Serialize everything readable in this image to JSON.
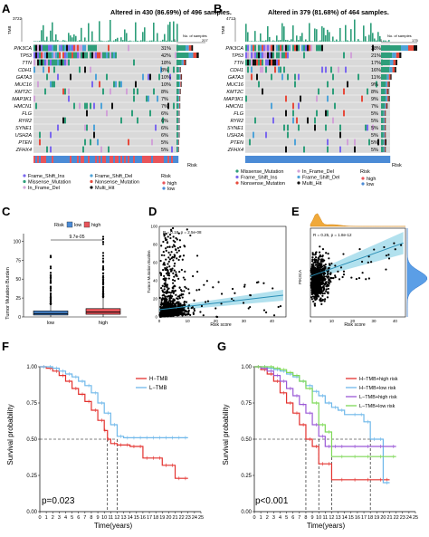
{
  "panels": {
    "A": {
      "letter": "A",
      "title": "Altered in 430 (86.69%) of 496 samples.",
      "tmb_max": "3722",
      "tmb_axis": "TMB",
      "samples_axis": "No. of samples",
      "samples_ticks": [
        "0",
        "207"
      ],
      "genes": [
        "PIK3CA",
        "TP53",
        "TTN",
        "CDH1",
        "GATA3",
        "MUC16",
        "KMT2C",
        "MAP3K1",
        "HMCN1",
        "FLG",
        "RYR2",
        "SYNE1",
        "USH2A",
        "PTEN",
        "ZFHX4"
      ],
      "pcts": [
        "31%",
        "42%",
        "18%",
        "8%",
        "10%",
        "10%",
        "8%",
        "7%",
        "7%",
        "6%",
        "6%",
        "6%",
        "6%",
        "5%",
        "5%"
      ],
      "counts": [
        0.57,
        0.77,
        0.33,
        0.15,
        0.19,
        0.18,
        0.15,
        0.13,
        0.13,
        0.11,
        0.11,
        0.11,
        0.11,
        0.09,
        0.09
      ],
      "risk_label": "Risk",
      "legend": {
        "items": [
          "Frame_Shift_Ins",
          "Missense_Mutation",
          "In_Frame_Del",
          "Frame_Shift_Del",
          "Nonsense_Mutation",
          "Multi_Hit"
        ],
        "risk_title": "Risk",
        "risk_items": [
          "high",
          "low"
        ]
      }
    },
    "B": {
      "letter": "B",
      "title": "Altered in 379 (81.68%) of 464 samples.",
      "tmb_max": "4712",
      "tmb_axis": "TMB",
      "samples_axis": "No. of samples",
      "samples_ticks": [
        "0",
        "175"
      ],
      "genes": [
        "PIK3CA",
        "TP53",
        "TTN",
        "CDH1",
        "GATA3",
        "MUC16",
        "KMT2C",
        "MAP3K1",
        "HMCN1",
        "FLG",
        "RYR2",
        "SYNE1",
        "USH2A",
        "PTEN",
        "ZFHX4"
      ],
      "pcts": [
        "38%",
        "21%",
        "17%",
        "16%",
        "11%",
        "9%",
        "8%",
        "9%",
        "7%",
        "5%",
        "5%",
        "5%",
        "5%",
        "5%",
        "5%"
      ],
      "counts": [
        1.0,
        0.56,
        0.45,
        0.42,
        0.29,
        0.24,
        0.21,
        0.24,
        0.18,
        0.13,
        0.13,
        0.13,
        0.13,
        0.13,
        0.13
      ],
      "risk_label": "Risk",
      "legend": {
        "items": [
          "Missense_Mutation",
          "Frame_Shift_Ins",
          "Nonsense_Mutation",
          "In_Frame_Del",
          "Frame_Shift_Del",
          "Multi_Hit"
        ],
        "risk_title": "Risk",
        "risk_items": [
          "high",
          "low"
        ]
      }
    },
    "C": {
      "letter": "C",
      "legend_title": "Risk",
      "legend_items": [
        "low",
        "high"
      ],
      "pvalue": "9.7e-05",
      "ylabel": "Tumor Mutation Burden",
      "yticks": [
        "0",
        "25",
        "50",
        "75",
        "100"
      ],
      "xticks": [
        "low",
        "high"
      ]
    },
    "D": {
      "letter": "D",
      "stat": "R = 0.18, p = 2.5e-08",
      "xlabel": "Risk score",
      "ylabel": "Tumor Mutation Burden",
      "xticks": [
        "0",
        "10",
        "20",
        "30",
        "40"
      ],
      "yticks": [
        "0",
        "20",
        "40",
        "60",
        "80",
        "100"
      ]
    },
    "E": {
      "letter": "E",
      "stat": "R = 0.25, p = 1.8e-12",
      "xlabel": "Risk score",
      "ylabel": "PIK3CA",
      "xticks": [
        "0",
        "10",
        "20",
        "30",
        "40"
      ]
    },
    "F": {
      "letter": "F",
      "legend": [
        "H−TMB",
        "L−TMB"
      ],
      "pvalue": "p=0.023",
      "ylabel": "Survival probability",
      "xlabel": "Time(years)",
      "yticks": [
        "0.00",
        "0.25",
        "0.50",
        "0.75",
        "1.00"
      ],
      "xticks": [
        "0",
        "1",
        "2",
        "3",
        "4",
        "5",
        "6",
        "7",
        "8",
        "9",
        "10",
        "11",
        "12",
        "13",
        "14",
        "15",
        "16",
        "17",
        "18",
        "19",
        "20",
        "21",
        "22",
        "23",
        "24",
        "25"
      ]
    },
    "G": {
      "letter": "G",
      "legend": [
        "H−TMB+high risk",
        "H−TMB+low risk",
        "L−TMB+high risk",
        "L−TMB+low risk"
      ],
      "pvalue": "p<0.001",
      "ylabel": "Survival probability",
      "xlabel": "Time(years)",
      "yticks": [
        "0.00",
        "0.25",
        "0.50",
        "0.75",
        "1.00"
      ],
      "xticks": [
        "0",
        "1",
        "2",
        "3",
        "4",
        "5",
        "6",
        "7",
        "8",
        "9",
        "10",
        "11",
        "12",
        "13",
        "14",
        "15",
        "16",
        "17",
        "18",
        "19",
        "20",
        "21",
        "22",
        "23",
        "24",
        "25"
      ]
    }
  },
  "colors": {
    "missense": "#2e9e7a",
    "frame_shift_ins": "#7b68ee",
    "frame_shift_del": "#4fa3d8",
    "nonsense": "#e64a3b",
    "in_frame_del": "#d1a2d8",
    "multi_hit": "#111111",
    "risk_high": "#e8545a",
    "risk_low": "#4b8bd6",
    "box_low": "#4b8bd6",
    "box_high": "#e8545a",
    "regression": "#2a8fb6",
    "band": "#9fd9ea",
    "km_red": "#e3322f",
    "km_blue": "#6fb8ea",
    "km_purple": "#9b59d6",
    "km_green": "#7ed957"
  },
  "chart_data": [
    {
      "type": "bar",
      "panel": "A",
      "title": "Altered in 430 (86.69%) of 496 samples.",
      "categories": [
        "PIK3CA",
        "TP53",
        "TTN",
        "CDH1",
        "GATA3",
        "MUC16",
        "KMT2C",
        "MAP3K1",
        "HMCN1",
        "FLG",
        "RYR2",
        "SYNE1",
        "USH2A",
        "PTEN",
        "ZFHX4"
      ],
      "values": [
        31,
        42,
        18,
        8,
        10,
        10,
        8,
        7,
        7,
        6,
        6,
        6,
        6,
        5,
        5
      ]
    },
    {
      "type": "bar",
      "panel": "B",
      "title": "Altered in 379 (81.68%) of 464 samples.",
      "categories": [
        "PIK3CA",
        "TP53",
        "TTN",
        "CDH1",
        "GATA3",
        "MUC16",
        "KMT2C",
        "MAP3K1",
        "HMCN1",
        "FLG",
        "RYR2",
        "SYNE1",
        "USH2A",
        "PTEN",
        "ZFHX4"
      ],
      "values": [
        38,
        21,
        17,
        16,
        11,
        9,
        8,
        9,
        7,
        5,
        5,
        5,
        5,
        5,
        5
      ]
    },
    {
      "type": "box",
      "panel": "C",
      "categories": [
        "low",
        "high"
      ],
      "median": [
        4.5,
        6.5
      ],
      "q1": [
        2.5,
        3.5
      ],
      "q3": [
        8,
        11
      ],
      "whisker_low": [
        0,
        0
      ],
      "whisker_high": [
        17,
        26
      ],
      "ylabel": "Tumor Mutation Burden",
      "ylim": [
        0,
        110
      ]
    },
    {
      "type": "scatter",
      "panel": "D",
      "xlabel": "Risk score",
      "ylabel": "Tumor Mutation Burden",
      "xlim": [
        0,
        45
      ],
      "ylim": [
        0,
        100
      ],
      "fit_line": {
        "x": [
          0,
          44
        ],
        "y": [
          8,
          24
        ]
      }
    },
    {
      "type": "scatter",
      "panel": "E",
      "xlabel": "Risk score",
      "ylabel": "PIK3CA",
      "xlim": [
        0,
        45
      ],
      "ylim": [
        -3,
        9
      ],
      "fit_line": {
        "x": [
          0,
          44
        ],
        "y": [
          2.5,
          7
        ]
      }
    },
    {
      "type": "line",
      "panel": "F",
      "xlabel": "Time(years)",
      "ylabel": "Survival probability",
      "xlim": [
        0,
        25
      ],
      "ylim": [
        0,
        1
      ],
      "series": [
        {
          "name": "H−TMB",
          "x": [
            0,
            1,
            2,
            3,
            4,
            5,
            6,
            7,
            8,
            9,
            10,
            10.5,
            11,
            12,
            13,
            14,
            15,
            16,
            17,
            18,
            19,
            20,
            21,
            22,
            23
          ],
          "y": [
            1,
            0.99,
            0.97,
            0.94,
            0.9,
            0.85,
            0.81,
            0.76,
            0.7,
            0.63,
            0.56,
            0.5,
            0.47,
            0.46,
            0.46,
            0.45,
            0.45,
            0.37,
            0.37,
            0.37,
            0.32,
            0.32,
            0.23,
            0.23,
            0.23
          ]
        },
        {
          "name": "L−TMB",
          "x": [
            0,
            1,
            2,
            3,
            4,
            5,
            6,
            7,
            8,
            9,
            10,
            11,
            12,
            13,
            14,
            15,
            16,
            17,
            18,
            19,
            20,
            21,
            22,
            23
          ],
          "y": [
            1,
            1,
            0.99,
            0.97,
            0.95,
            0.93,
            0.9,
            0.87,
            0.82,
            0.75,
            0.68,
            0.6,
            0.52,
            0.51,
            0.51,
            0.51,
            0.51,
            0.51,
            0.51,
            0.51,
            0.51,
            0.51,
            0.51,
            0.51
          ]
        }
      ]
    },
    {
      "type": "line",
      "panel": "G",
      "xlabel": "Time(years)",
      "ylabel": "Survival probability",
      "xlim": [
        0,
        25
      ],
      "ylim": [
        0,
        1
      ],
      "series": [
        {
          "name": "H−TMB+high risk",
          "x": [
            0,
            1,
            2,
            3,
            4,
            5,
            6,
            7,
            8,
            9,
            10,
            11,
            12,
            14,
            16,
            18,
            20,
            21
          ],
          "y": [
            1,
            0.98,
            0.95,
            0.9,
            0.82,
            0.75,
            0.68,
            0.6,
            0.5,
            0.45,
            0.33,
            0.33,
            0.22,
            0.22,
            0.22,
            0.22,
            0.22,
            0.22
          ]
        },
        {
          "name": "H−TMB+low risk",
          "x": [
            0,
            1,
            2,
            3,
            4,
            5,
            6,
            7,
            8,
            9,
            10,
            11,
            12,
            13,
            14,
            16,
            17,
            18,
            19,
            20,
            21
          ],
          "y": [
            1,
            1,
            0.99,
            0.98,
            0.97,
            0.95,
            0.93,
            0.9,
            0.87,
            0.83,
            0.8,
            0.75,
            0.72,
            0.7,
            0.67,
            0.67,
            0.62,
            0.5,
            0.5,
            0.2,
            0.2
          ]
        },
        {
          "name": "L−TMB+high risk",
          "x": [
            0,
            1,
            2,
            3,
            4,
            5,
            6,
            7,
            8,
            9,
            10,
            11,
            12,
            13,
            14,
            16,
            18,
            20,
            22
          ],
          "y": [
            1,
            0.99,
            0.97,
            0.94,
            0.9,
            0.85,
            0.8,
            0.74,
            0.68,
            0.6,
            0.52,
            0.45,
            0.45,
            0.45,
            0.45,
            0.45,
            0.45,
            0.45,
            0.45
          ]
        },
        {
          "name": "L−TMB+low risk",
          "x": [
            0,
            1,
            2,
            3,
            4,
            5,
            6,
            7,
            8,
            9,
            10,
            11,
            12,
            14,
            16,
            18,
            20,
            22
          ],
          "y": [
            1,
            1,
            1,
            0.99,
            0.98,
            0.96,
            0.94,
            0.9,
            0.85,
            0.75,
            0.6,
            0.55,
            0.38,
            0.38,
            0.38,
            0.38,
            0.38,
            0.38
          ]
        }
      ]
    }
  ]
}
